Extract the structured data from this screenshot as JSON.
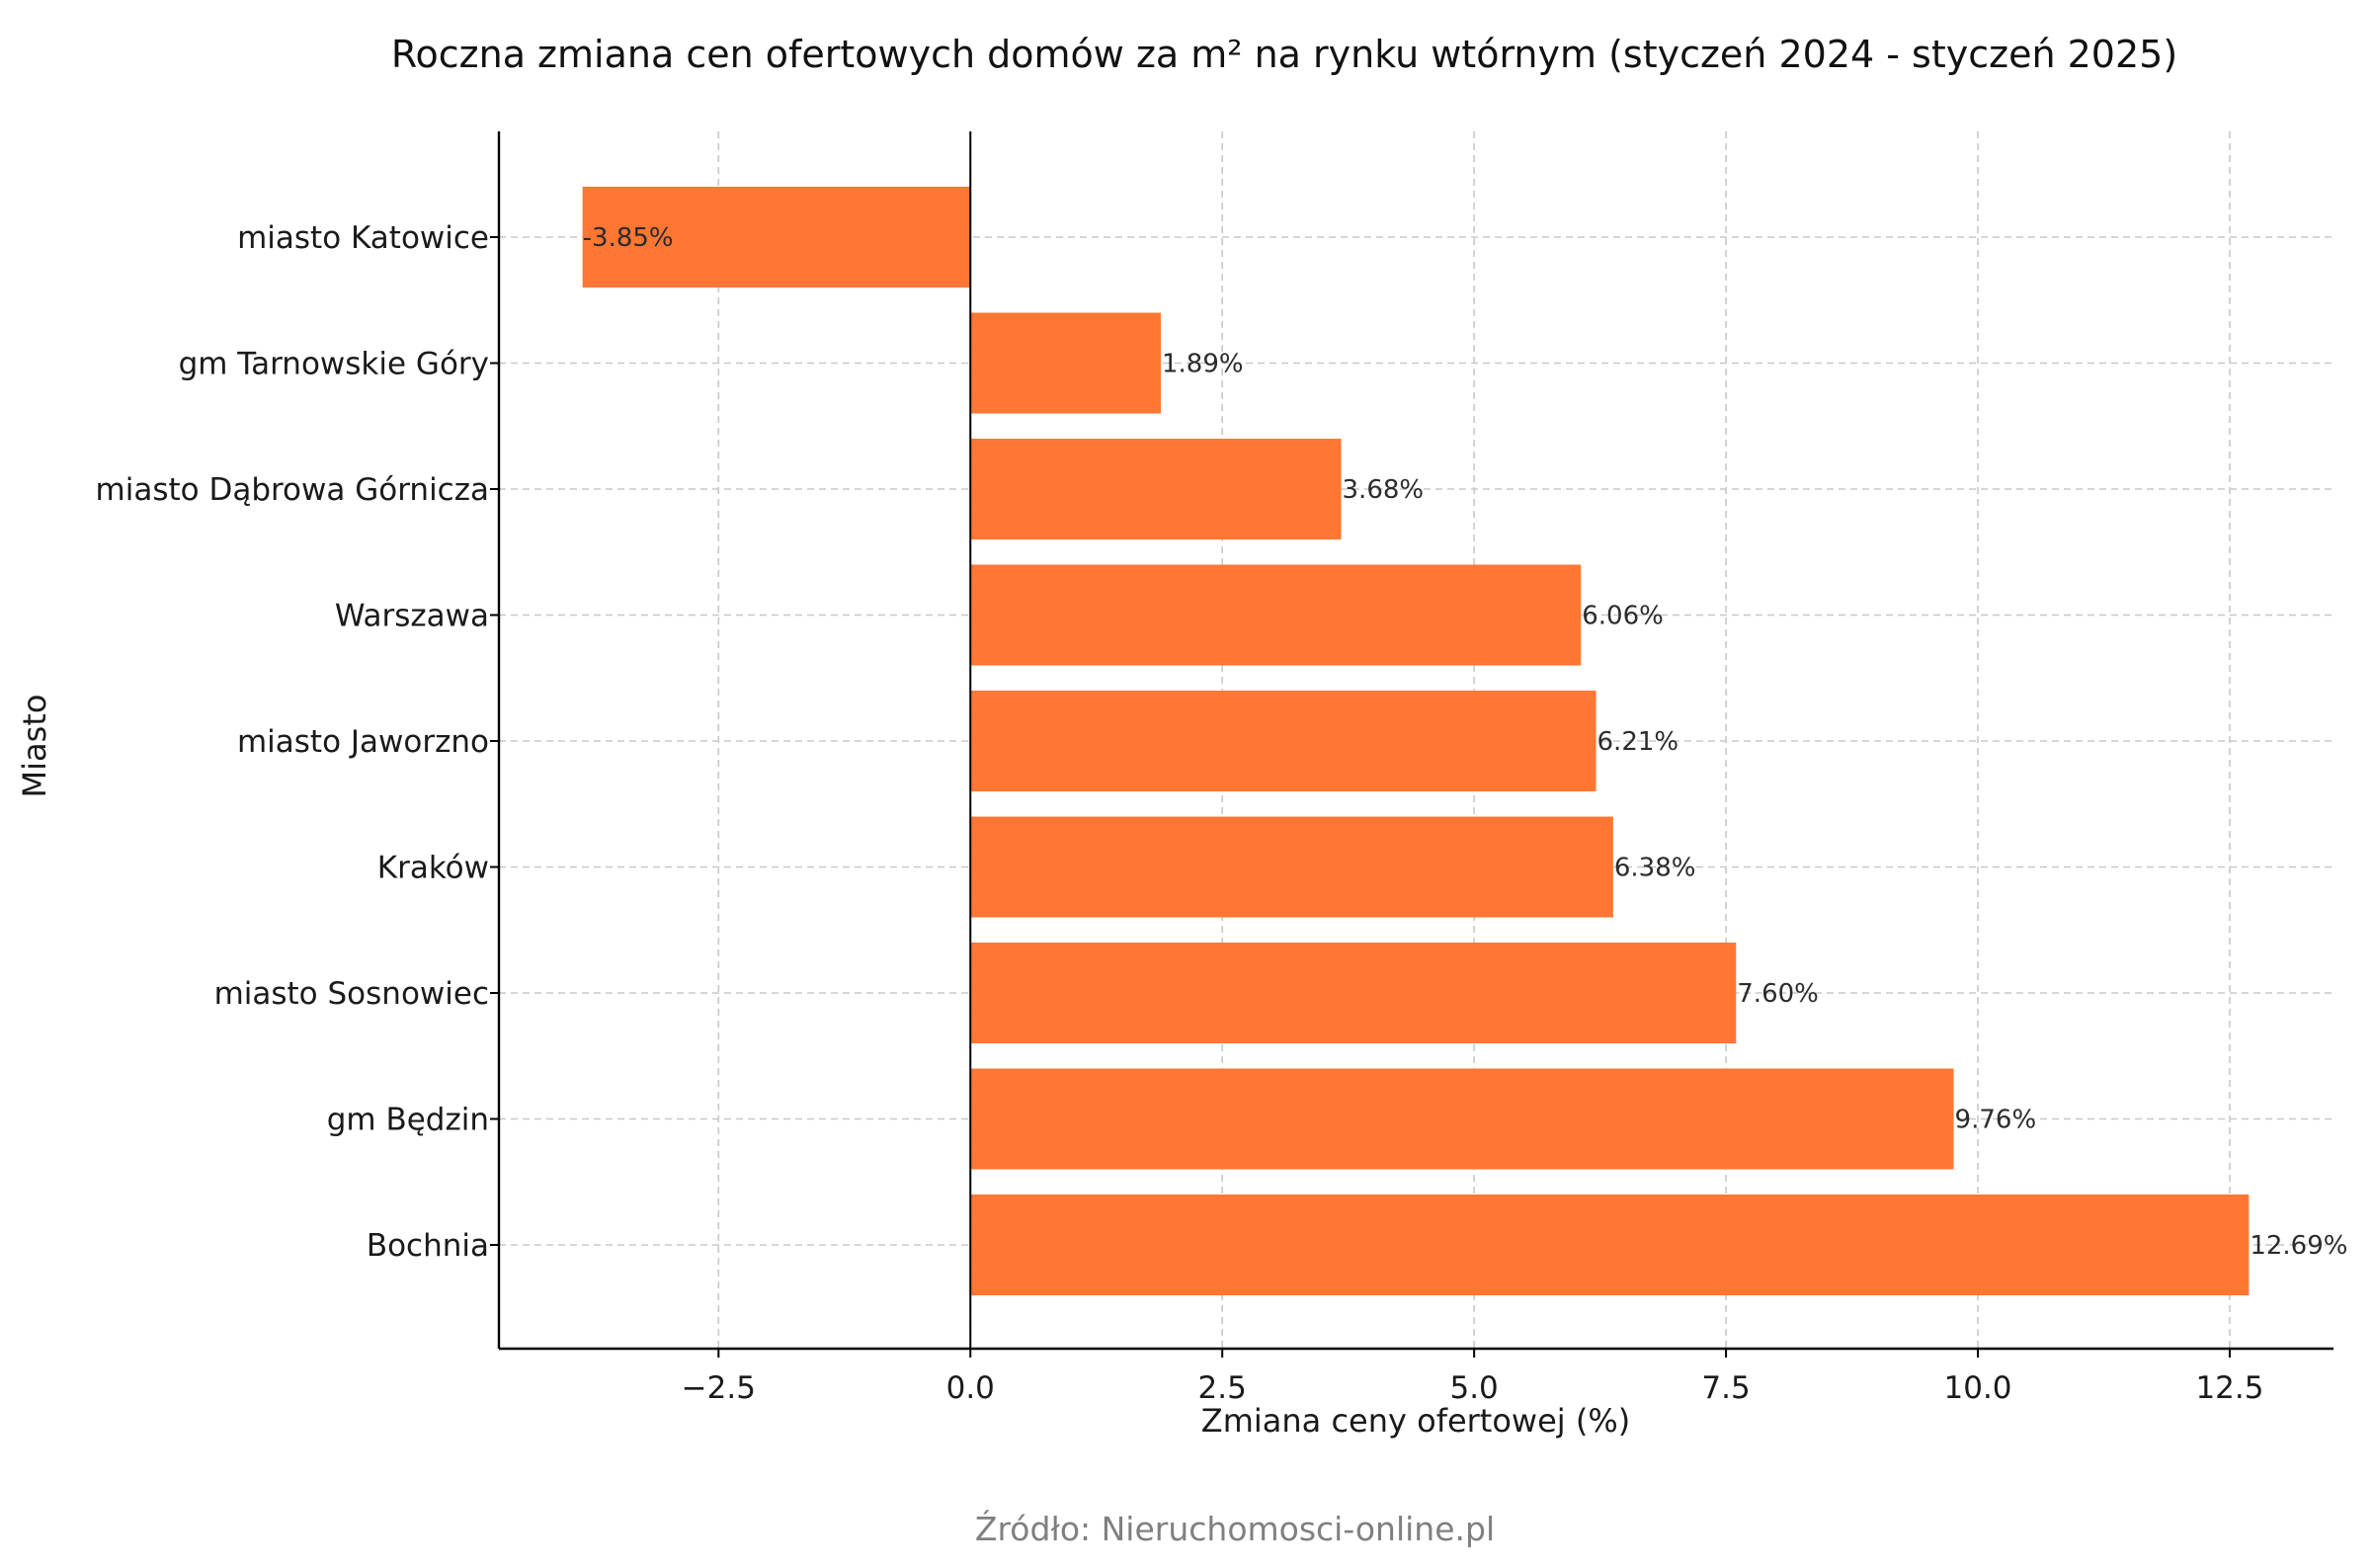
{
  "chart_data": {
    "type": "bar",
    "orientation": "horizontal",
    "title": "Roczna zmiana cen ofertowych domów za m² na rynku wtórnym (styczeń 2024 - styczeń 2025)",
    "xlabel": "Zmiana ceny ofertowej (%)",
    "ylabel": "Miasto",
    "categories": [
      "miasto Katowice",
      "gm Tarnowskie Góry",
      "miasto Dąbrowa Górnicza",
      "Warszawa",
      "miasto Jaworzno",
      "Kraków",
      "miasto Sosnowiec",
      "gm Będzin",
      "Bochnia"
    ],
    "values": [
      -3.85,
      1.89,
      3.68,
      6.06,
      6.21,
      6.38,
      7.6,
      9.76,
      12.69
    ],
    "value_labels": [
      "-3.85%",
      "1.89%",
      "3.68%",
      "6.06%",
      "6.21%",
      "6.38%",
      "7.60%",
      "9.76%",
      "12.69%"
    ],
    "xticks": [
      -2.5,
      0.0,
      2.5,
      5.0,
      7.5,
      10.0,
      12.5
    ],
    "xtick_labels": [
      "−2.5",
      "0.0",
      "2.5",
      "5.0",
      "7.5",
      "10.0",
      "12.5"
    ],
    "xlim": [
      -4.68,
      13.53
    ],
    "grid": true,
    "bar_color": "#ff7733",
    "source": "Źródło: Nieruchomosci-online.pl"
  }
}
